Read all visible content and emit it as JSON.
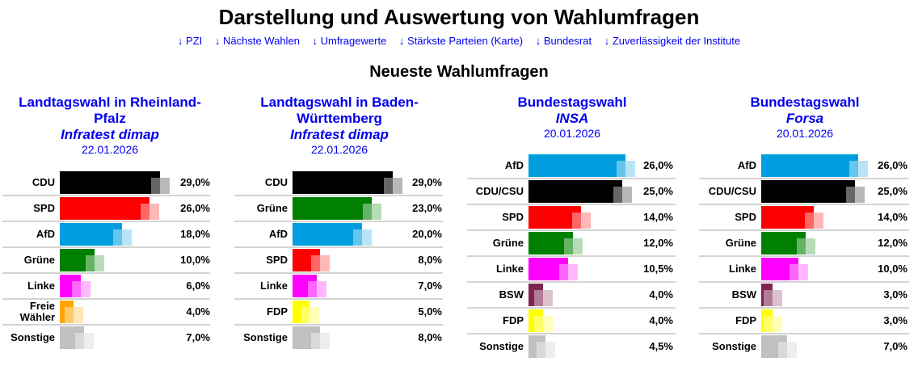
{
  "header": {
    "title": "Darstellung und Auswertung von Wahlumfragen",
    "nav_links": [
      {
        "label": "↓ PZI"
      },
      {
        "label": "↓ Nächste Wahlen"
      },
      {
        "label": "↓ Umfragewerte"
      },
      {
        "label": "↓ Stärkste Parteien (Karte)"
      },
      {
        "label": "↓ Bundesrat"
      },
      {
        "label": "↓ Zuverlässigkeit der Institute"
      }
    ],
    "subtitle": "Neueste Wahlumfragen"
  },
  "colors": {
    "link": "#0000ee",
    "CDU": "#000000",
    "CDU/CSU": "#000000",
    "SPD": "#ff0000",
    "AfD": "#009ee0",
    "Grüne": "#008000",
    "Linke": "#ff00ff",
    "Freie Wähler": "#ffa500",
    "BSW": "#7d254f",
    "FDP": "#ffff00",
    "Sonstige": "#c0c0c0"
  },
  "chart_data": [
    {
      "type": "bar",
      "orientation": "horizontal",
      "title": "Landtagswahl in Rheinland-Pfalz",
      "title_lines": [
        "Landtagswahl in Rheinland-",
        "Pfalz"
      ],
      "institute": "Infratest dimap",
      "date": "22.01.2026",
      "categories": [
        "CDU",
        "SPD",
        "AfD",
        "Grüne",
        "Linke",
        "Freie Wähler",
        "Sonstige"
      ],
      "category_labels": [
        "CDU",
        "SPD",
        "AfD",
        "Grüne",
        "Linke",
        "Freie\nWähler",
        "Sonstige"
      ],
      "values": [
        29.0,
        26.0,
        18.0,
        10.0,
        6.0,
        4.0,
        7.0
      ],
      "value_labels": [
        "29,0%",
        "26,0%",
        "18,0%",
        "10,0%",
        "6,0%",
        "4,0%",
        "7,0%"
      ],
      "unit": "%"
    },
    {
      "type": "bar",
      "orientation": "horizontal",
      "title": "Landtagswahl in Baden-Württemberg",
      "title_lines": [
        "Landtagswahl in Baden-",
        "Württemberg"
      ],
      "institute": "Infratest dimap",
      "date": "22.01.2026",
      "categories": [
        "CDU",
        "Grüne",
        "AfD",
        "SPD",
        "Linke",
        "FDP",
        "Sonstige"
      ],
      "category_labels": [
        "CDU",
        "Grüne",
        "AfD",
        "SPD",
        "Linke",
        "FDP",
        "Sonstige"
      ],
      "values": [
        29.0,
        23.0,
        20.0,
        8.0,
        7.0,
        5.0,
        8.0
      ],
      "value_labels": [
        "29,0%",
        "23,0%",
        "20,0%",
        "8,0%",
        "7,0%",
        "5,0%",
        "8,0%"
      ],
      "unit": "%"
    },
    {
      "type": "bar",
      "orientation": "horizontal",
      "title": "Bundestagswahl",
      "title_lines": [
        "Bundestagswahl"
      ],
      "institute": "INSA",
      "date": "20.01.2026",
      "categories": [
        "AfD",
        "CDU/CSU",
        "SPD",
        "Grüne",
        "Linke",
        "BSW",
        "FDP",
        "Sonstige"
      ],
      "category_labels": [
        "AfD",
        "CDU/CSU",
        "SPD",
        "Grüne",
        "Linke",
        "BSW",
        "FDP",
        "Sonstige"
      ],
      "values": [
        26.0,
        25.0,
        14.0,
        12.0,
        10.5,
        4.0,
        4.0,
        4.5
      ],
      "value_labels": [
        "26,0%",
        "25,0%",
        "14,0%",
        "12,0%",
        "10,5%",
        "4,0%",
        "4,0%",
        "4,5%"
      ],
      "unit": "%"
    },
    {
      "type": "bar",
      "orientation": "horizontal",
      "title": "Bundestagswahl",
      "title_lines": [
        "Bundestagswahl"
      ],
      "institute": "Forsa",
      "date": "20.01.2026",
      "categories": [
        "AfD",
        "CDU/CSU",
        "SPD",
        "Grüne",
        "Linke",
        "BSW",
        "FDP",
        "Sonstige"
      ],
      "category_labels": [
        "AfD",
        "CDU/CSU",
        "SPD",
        "Grüne",
        "Linke",
        "BSW",
        "FDP",
        "Sonstige"
      ],
      "values": [
        26.0,
        25.0,
        14.0,
        12.0,
        10.0,
        3.0,
        3.0,
        7.0
      ],
      "value_labels": [
        "26,0%",
        "25,0%",
        "14,0%",
        "12,0%",
        "10,0%",
        "3,0%",
        "3,0%",
        "7,0%"
      ],
      "unit": "%"
    }
  ]
}
